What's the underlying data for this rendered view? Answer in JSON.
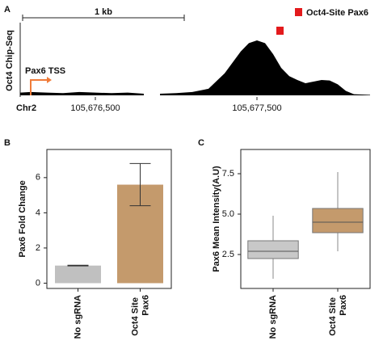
{
  "chart_data": [
    {
      "type": "area",
      "panel": "A",
      "ylabel": "Oct4 Chip-Seq",
      "chrom": "Chr2",
      "color": "#000000",
      "x": [
        105676035,
        105676100,
        105676200,
        105676300,
        105676400,
        105676500,
        105676600,
        105676700,
        105676800,
        105676850,
        105676900,
        105677000,
        105677100,
        105677200,
        105677300,
        105677400,
        105677450,
        105677500,
        105677550,
        105677600,
        105677650,
        105677700,
        105677750,
        105677800,
        105677850,
        105677900,
        105677950,
        105678000,
        105678050,
        105678100,
        105678200
      ],
      "values": [
        5,
        6,
        5,
        4,
        6,
        5,
        4,
        5,
        3,
        null,
        3,
        4,
        6,
        12,
        40,
        80,
        95,
        100,
        95,
        75,
        50,
        35,
        28,
        22,
        25,
        28,
        27,
        20,
        8,
        2,
        1
      ],
      "xlim": [
        105676035,
        105678260
      ],
      "ylim": [
        0,
        100
      ],
      "xticks": [
        {
          "value": 105676500,
          "label": "105,676,500"
        },
        {
          "value": 105677500,
          "label": "105,677,500"
        }
      ],
      "scale_bar": {
        "label": "1 kb",
        "length": 1000,
        "start": 105676050
      },
      "annotation": {
        "text": "Pax6 TSS",
        "x": 105676100,
        "color": "#f07c3a"
      },
      "series": [
        {
          "name": "Oct4-Site Pax6",
          "color": "#e31a1c",
          "x": [
            105677640
          ]
        }
      ]
    },
    {
      "type": "bar",
      "panel": "B",
      "ylabel": "Pax6 Fold Change",
      "categories": [
        "No sgRNA",
        "Oct4 Site Pax6"
      ],
      "values": [
        1.0,
        5.6
      ],
      "errors": [
        0.02,
        1.2
      ],
      "colors": [
        "#c0c0c0",
        "#c49a6c"
      ],
      "ylim": [
        -0.3,
        7.6
      ],
      "yticks": [
        0,
        2,
        4,
        6
      ]
    },
    {
      "type": "box",
      "panel": "C",
      "ylabel": "Pax6 Mean Intensity(A.U)",
      "categories": [
        "No sgRNA",
        "Oct4 Site Pax6"
      ],
      "boxes": [
        {
          "low": 1.0,
          "q1": 2.25,
          "median": 2.7,
          "q3": 3.35,
          "high": 4.9
        },
        {
          "low": 2.7,
          "q1": 3.85,
          "median": 4.5,
          "q3": 5.35,
          "high": 7.6
        }
      ],
      "colors": [
        "#c8c8c8",
        "#c49a6c"
      ],
      "ylim": [
        0.4,
        9.0
      ],
      "yticks": [
        {
          "value": 2.5,
          "label": "2.5"
        },
        {
          "value": 5.0,
          "label": "5.0"
        },
        {
          "value": 7.5,
          "label": "7.5"
        }
      ]
    }
  ]
}
